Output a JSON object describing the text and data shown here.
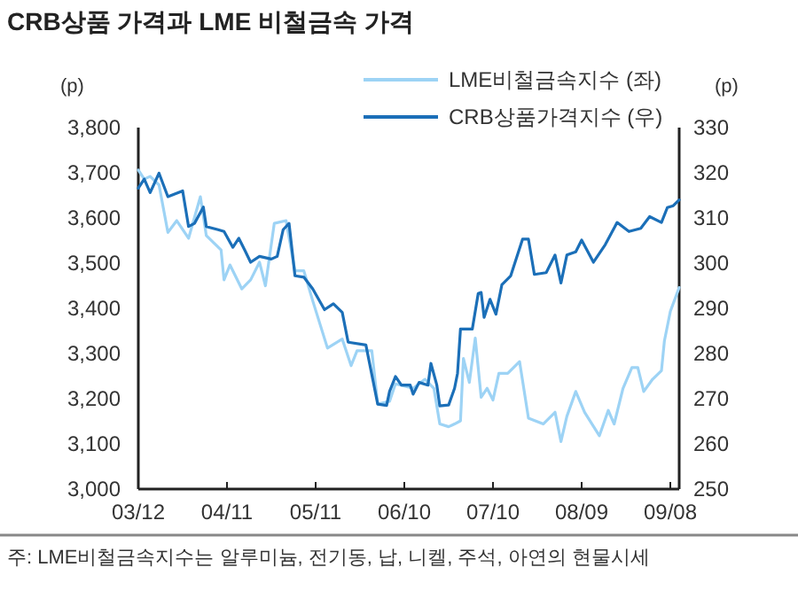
{
  "chart_data": {
    "type": "line",
    "title": "CRB상품 가격과 LME 비철금속 가격",
    "ylabel": "(p)",
    "y2label": "(p)",
    "annotations": [
      "주: LME비철금속지수는 알루미늄, 전기동, 납, 니켈, 주석, 아연의 현물시세"
    ],
    "legend": "top",
    "grid": false,
    "marker": "none",
    "line_style": "solid",
    "xlim": [
      "--03-12",
      "--09-11"
    ],
    "xticks": [
      {
        "value": "--03-12",
        "label": "03/12"
      },
      {
        "value": "--04-11",
        "label": "04/11"
      },
      {
        "value": "--05-11",
        "label": "05/11"
      },
      {
        "value": "--06-10",
        "label": "06/10"
      },
      {
        "value": "--07-10",
        "label": "07/10"
      },
      {
        "value": "--08-09",
        "label": "08/09"
      },
      {
        "value": "--09-08",
        "label": "09/08"
      }
    ],
    "ylim": [
      3000,
      3800
    ],
    "yticks": [
      {
        "value": 3000,
        "label": "3,000"
      },
      {
        "value": 3100,
        "label": "3,100"
      },
      {
        "value": 3200,
        "label": "3,200"
      },
      {
        "value": 3300,
        "label": "3,300"
      },
      {
        "value": 3400,
        "label": "3,400"
      },
      {
        "value": 3500,
        "label": "3,500"
      },
      {
        "value": 3600,
        "label": "3,600"
      },
      {
        "value": 3700,
        "label": "3,700"
      },
      {
        "value": 3800,
        "label": "3,800"
      }
    ],
    "y2lim": [
      250,
      330
    ],
    "y2ticks": [
      250,
      260,
      270,
      280,
      290,
      300,
      310,
      320,
      330
    ],
    "series": [
      {
        "name": "LME비철금속지수 (좌)",
        "color": "#9dd3f5",
        "axis": "y",
        "x": [
          "--03-12",
          "--03-14",
          "--03-16",
          "--03-19",
          "--03-22",
          "--03-25",
          "--03-29",
          "--04-02",
          "--04-04",
          "--04-09",
          "--04-10",
          "--04-12",
          "--04-16",
          "--04-19",
          "--04-22",
          "--04-24",
          "--04-27",
          "--05-01",
          "--05-04",
          "--05-07",
          "--05-10",
          "--05-15",
          "--05-20",
          "--05-23",
          "--05-25",
          "--05-30",
          "--06-01",
          "--06-05",
          "--06-07",
          "--06-13",
          "--06-17",
          "--06-20",
          "--06-22",
          "--06-25",
          "--06-27",
          "--06-29",
          "--06-30",
          "--07-02",
          "--07-04",
          "--07-06",
          "--07-08",
          "--07-10",
          "--07-12",
          "--07-15",
          "--07-19",
          "--07-22",
          "--07-27",
          "--07-31",
          "--08-02",
          "--08-04",
          "--08-07",
          "--08-10",
          "--08-15",
          "--08-18",
          "--08-20",
          "--08-23",
          "--08-26",
          "--08-28",
          "--08-30",
          "--09-02",
          "--09-05",
          "--09-06",
          "--09-08",
          "--09-11"
        ],
        "values": [
          3706,
          3686,
          3692,
          3673,
          3568,
          3594,
          3555,
          3647,
          3561,
          3529,
          3463,
          3496,
          3443,
          3463,
          3502,
          3450,
          3588,
          3594,
          3483,
          3483,
          3417,
          3312,
          3332,
          3273,
          3306,
          3306,
          3188,
          3194,
          3233,
          3223,
          3243,
          3223,
          3144,
          3138,
          3144,
          3151,
          3289,
          3236,
          3334,
          3203,
          3223,
          3197,
          3256,
          3256,
          3282,
          3157,
          3144,
          3170,
          3105,
          3161,
          3216,
          3170,
          3118,
          3174,
          3144,
          3223,
          3269,
          3269,
          3216,
          3243,
          3262,
          3328,
          3393,
          3446
        ]
      },
      {
        "name": "CRB상품가격지수 (우)",
        "color": "#1b6fb8",
        "axis": "y2",
        "x": [
          "--03-12",
          "--03-14",
          "--03-16",
          "--03-19",
          "--03-22",
          "--03-27",
          "--03-29",
          "--03-31",
          "--04-03",
          "--04-04",
          "--04-08",
          "--04-10",
          "--04-13",
          "--04-15",
          "--04-17",
          "--04-19",
          "--04-22",
          "--04-26",
          "--04-28",
          "--04-30",
          "--05-02",
          "--05-04",
          "--05-07",
          "--05-10",
          "--05-14",
          "--05-17",
          "--05-20",
          "--05-22",
          "--05-28",
          "--06-01",
          "--06-04",
          "--06-05",
          "--06-07",
          "--06-09",
          "--06-12",
          "--06-13",
          "--06-15",
          "--06-18",
          "--06-19",
          "--06-21",
          "--06-22",
          "--06-25",
          "--06-27",
          "--06-28",
          "--06-29",
          "--07-03",
          "--07-05",
          "--07-06",
          "--07-07",
          "--07-09",
          "--07-11",
          "--07-13",
          "--07-16",
          "--07-20",
          "--07-22",
          "--07-24",
          "--07-28",
          "--07-31",
          "--08-02",
          "--08-04",
          "--08-07",
          "--08-09",
          "--08-13",
          "--08-17",
          "--08-21",
          "--08-25",
          "--08-29",
          "--09-01",
          "--09-05",
          "--09-07",
          "--09-09",
          "--09-11"
        ],
        "values": [
          316.6,
          318.6,
          315.6,
          319.9,
          314.7,
          316.0,
          308.1,
          308.8,
          312.4,
          308.1,
          307.4,
          307.0,
          303.5,
          305.5,
          302.9,
          300.2,
          301.5,
          300.9,
          301.5,
          307.4,
          308.8,
          297.2,
          296.9,
          294.3,
          289.7,
          291.0,
          289.1,
          282.5,
          281.9,
          268.8,
          268.5,
          271.6,
          274.9,
          273.0,
          273.0,
          271.0,
          273.6,
          273.0,
          277.8,
          273.0,
          268.4,
          268.6,
          272.3,
          275.6,
          285.4,
          285.4,
          293.3,
          293.5,
          288.0,
          292.0,
          288.7,
          295.2,
          297.2,
          305.3,
          305.3,
          297.5,
          297.9,
          301.8,
          295.6,
          301.8,
          302.5,
          305.1,
          300.2,
          304.1,
          309.0,
          307.0,
          307.7,
          310.3,
          309.0,
          312.3,
          312.7,
          314.0
        ]
      }
    ]
  }
}
